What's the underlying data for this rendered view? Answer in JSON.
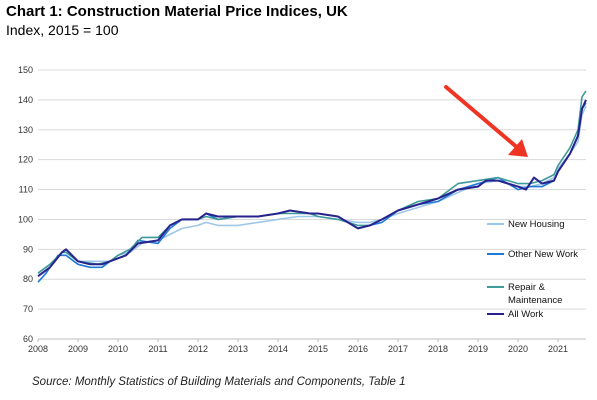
{
  "title": "Chart 1: Construction Material Price Indices, UK",
  "subtitle": "Index, 2015 = 100",
  "source": "Source: Monthly Statistics of Building Materials and Components, Table 1",
  "colors": {
    "new_housing": "#9fc7e8",
    "other_new_work": "#1f7ad6",
    "repair_maintenance": "#3f9a9a",
    "all_work": "#28238c",
    "arrow": "#ee3524",
    "grid": "#d9d9d9"
  },
  "chart_data": {
    "type": "line",
    "title": "Chart 1: Construction Material Price Indices, UK",
    "subtitle": "Index, 2015 = 100",
    "xlabel": "",
    "ylabel": "",
    "xlim": [
      2008,
      2021.7
    ],
    "ylim": [
      60,
      150
    ],
    "yticks": [
      "60",
      "70",
      "80",
      "90",
      "100",
      "110",
      "120",
      "130",
      "140",
      "150"
    ],
    "xticks": [
      "2008",
      "2009",
      "2010",
      "2011",
      "2012",
      "2013",
      "2014",
      "2015",
      "2016",
      "2017",
      "2018",
      "2019",
      "2020",
      "2021"
    ],
    "grid": "horizontal",
    "legend": "right",
    "series": [
      {
        "name": "New Housing",
        "points": [
          [
            2008,
            82
          ],
          [
            2008.3,
            85
          ],
          [
            2008.6,
            89
          ],
          [
            2008.7,
            89
          ],
          [
            2009,
            86
          ],
          [
            2009.5,
            86
          ],
          [
            2009.8,
            86
          ],
          [
            2010,
            88
          ],
          [
            2010.3,
            89
          ],
          [
            2010.6,
            92
          ],
          [
            2011,
            93
          ],
          [
            2011.3,
            95
          ],
          [
            2011.6,
            97
          ],
          [
            2012,
            98
          ],
          [
            2012.2,
            99
          ],
          [
            2012.5,
            98
          ],
          [
            2013,
            98
          ],
          [
            2013.5,
            99
          ],
          [
            2014,
            100
          ],
          [
            2014.5,
            101
          ],
          [
            2015,
            101
          ],
          [
            2015.5,
            100
          ],
          [
            2016,
            99
          ],
          [
            2016.3,
            99
          ],
          [
            2016.6,
            100
          ],
          [
            2017,
            102
          ],
          [
            2017.5,
            104
          ],
          [
            2018,
            106
          ],
          [
            2018.5,
            109
          ],
          [
            2019,
            112
          ],
          [
            2019.5,
            113
          ],
          [
            2020,
            111
          ],
          [
            2020.3,
            111
          ],
          [
            2020.6,
            112
          ],
          [
            2020.9,
            114
          ],
          [
            2021,
            117
          ],
          [
            2021.3,
            122
          ],
          [
            2021.5,
            126
          ],
          [
            2021.6,
            135
          ],
          [
            2021.7,
            138
          ]
        ]
      },
      {
        "name": "Other New Work",
        "points": [
          [
            2008,
            79
          ],
          [
            2008.2,
            82
          ],
          [
            2008.5,
            88
          ],
          [
            2008.7,
            88
          ],
          [
            2009,
            85
          ],
          [
            2009.3,
            84
          ],
          [
            2009.6,
            84
          ],
          [
            2009.8,
            86
          ],
          [
            2010,
            87
          ],
          [
            2010.2,
            88
          ],
          [
            2010.5,
            93
          ],
          [
            2011,
            92
          ],
          [
            2011.3,
            97
          ],
          [
            2011.6,
            100
          ],
          [
            2012,
            100
          ],
          [
            2012.2,
            102
          ],
          [
            2012.5,
            100
          ],
          [
            2013,
            101
          ],
          [
            2013.5,
            101
          ],
          [
            2014,
            102
          ],
          [
            2014.3,
            103
          ],
          [
            2014.8,
            102
          ],
          [
            2015,
            102
          ],
          [
            2015.5,
            101
          ],
          [
            2016,
            97
          ],
          [
            2016.3,
            98
          ],
          [
            2016.6,
            99
          ],
          [
            2017,
            103
          ],
          [
            2017.5,
            105
          ],
          [
            2018,
            106
          ],
          [
            2018.5,
            110
          ],
          [
            2019,
            112
          ],
          [
            2019.5,
            114
          ],
          [
            2020,
            110
          ],
          [
            2020.3,
            111
          ],
          [
            2020.6,
            111
          ],
          [
            2020.9,
            113
          ],
          [
            2021,
            116
          ],
          [
            2021.3,
            122
          ],
          [
            2021.5,
            128
          ],
          [
            2021.6,
            137
          ],
          [
            2021.7,
            139
          ]
        ]
      },
      {
        "name": "Repair & Maintenance",
        "points": [
          [
            2008,
            82
          ],
          [
            2008.3,
            85
          ],
          [
            2008.6,
            89
          ],
          [
            2008.7,
            89
          ],
          [
            2009,
            86
          ],
          [
            2009.5,
            85
          ],
          [
            2009.8,
            86
          ],
          [
            2010,
            88
          ],
          [
            2010.3,
            90
          ],
          [
            2010.6,
            94
          ],
          [
            2011,
            94
          ],
          [
            2011.3,
            98
          ],
          [
            2011.6,
            100
          ],
          [
            2012,
            100
          ],
          [
            2012.2,
            101
          ],
          [
            2012.5,
            100
          ],
          [
            2013,
            101
          ],
          [
            2013.5,
            101
          ],
          [
            2014,
            102
          ],
          [
            2014.3,
            102
          ],
          [
            2014.8,
            102
          ],
          [
            2015,
            101
          ],
          [
            2015.5,
            100
          ],
          [
            2016,
            98
          ],
          [
            2016.3,
            98
          ],
          [
            2016.6,
            100
          ],
          [
            2017,
            103
          ],
          [
            2017.5,
            106
          ],
          [
            2018,
            107
          ],
          [
            2018.5,
            112
          ],
          [
            2019,
            113
          ],
          [
            2019.5,
            114
          ],
          [
            2020,
            112
          ],
          [
            2020.3,
            112
          ],
          [
            2020.6,
            113
          ],
          [
            2020.9,
            115
          ],
          [
            2021,
            118
          ],
          [
            2021.3,
            124
          ],
          [
            2021.5,
            130
          ],
          [
            2021.6,
            141
          ],
          [
            2021.7,
            143
          ]
        ]
      },
      {
        "name": "All Work",
        "points": [
          [
            2008,
            81
          ],
          [
            2008.3,
            84
          ],
          [
            2008.6,
            89
          ],
          [
            2008.7,
            90
          ],
          [
            2009,
            86
          ],
          [
            2009.3,
            85
          ],
          [
            2009.6,
            85
          ],
          [
            2009.8,
            86
          ],
          [
            2010,
            87
          ],
          [
            2010.2,
            88
          ],
          [
            2010.5,
            92
          ],
          [
            2011,
            93
          ],
          [
            2011.3,
            98
          ],
          [
            2011.6,
            100
          ],
          [
            2012,
            100
          ],
          [
            2012.2,
            102
          ],
          [
            2012.5,
            101
          ],
          [
            2013,
            101
          ],
          [
            2013.5,
            101
          ],
          [
            2014,
            102
          ],
          [
            2014.3,
            103
          ],
          [
            2014.8,
            102
          ],
          [
            2015,
            102
          ],
          [
            2015.5,
            101
          ],
          [
            2016,
            97
          ],
          [
            2016.3,
            98
          ],
          [
            2016.6,
            100
          ],
          [
            2017,
            103
          ],
          [
            2017.5,
            105
          ],
          [
            2018,
            107
          ],
          [
            2018.5,
            110
          ],
          [
            2019,
            111
          ],
          [
            2019.2,
            113
          ],
          [
            2019.5,
            113
          ],
          [
            2020,
            111
          ],
          [
            2020.2,
            110
          ],
          [
            2020.4,
            114
          ],
          [
            2020.6,
            112
          ],
          [
            2020.9,
            113
          ],
          [
            2021,
            116
          ],
          [
            2021.3,
            122
          ],
          [
            2021.5,
            128
          ],
          [
            2021.6,
            137
          ],
          [
            2021.7,
            140
          ]
        ]
      }
    ]
  }
}
